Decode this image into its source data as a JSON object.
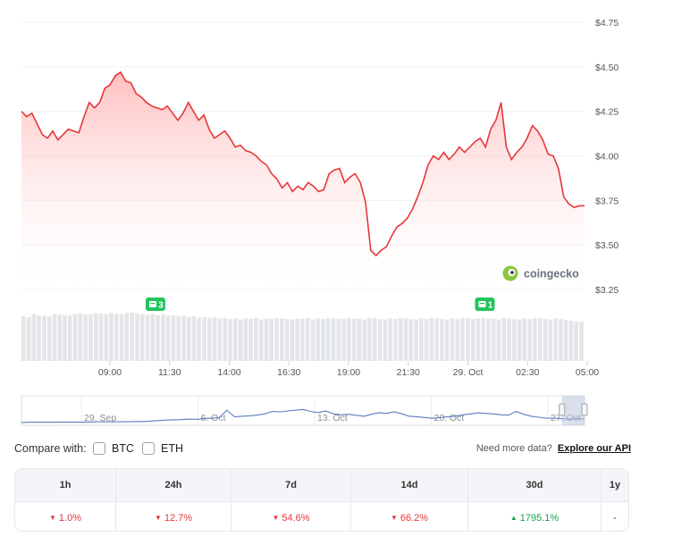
{
  "chart_data": {
    "type": "line",
    "currency_prefix": "$",
    "y_ticks": [
      "$4.75",
      "$4.50",
      "$4.25",
      "$4.00",
      "$3.75",
      "$3.50",
      "$3.25"
    ],
    "ylim": [
      3.25,
      4.75
    ],
    "x_ticks": [
      "09:00",
      "11:30",
      "14:00",
      "16:30",
      "19:00",
      "21:30",
      "29. Oct",
      "02:30",
      "05:00"
    ],
    "series": [
      {
        "values": [
          4.25,
          4.22,
          4.24,
          4.18,
          4.12,
          4.1,
          4.14,
          4.09,
          4.12,
          4.15,
          4.14,
          4.13,
          4.22,
          4.3,
          4.27,
          4.3,
          4.38,
          4.4,
          4.45,
          4.47,
          4.42,
          4.41,
          4.35,
          4.33,
          4.3,
          4.28,
          4.27,
          4.26,
          4.28,
          4.24,
          4.2,
          4.24,
          4.3,
          4.25,
          4.2,
          4.23,
          4.15,
          4.1,
          4.12,
          4.14,
          4.1,
          4.05,
          4.06,
          4.03,
          4.02,
          4.0,
          3.97,
          3.95,
          3.9,
          3.87,
          3.82,
          3.85,
          3.8,
          3.83,
          3.81,
          3.85,
          3.83,
          3.8,
          3.81,
          3.9,
          3.92,
          3.93,
          3.85,
          3.88,
          3.9,
          3.85,
          3.74,
          3.47,
          3.44,
          3.47,
          3.49,
          3.55,
          3.6,
          3.62,
          3.65,
          3.7,
          3.77,
          3.85,
          3.95,
          4.0,
          3.98,
          4.02,
          3.98,
          4.01,
          4.05,
          4.02,
          4.05,
          4.08,
          4.1,
          4.05,
          4.15,
          4.2,
          4.3,
          4.05,
          3.98,
          4.02,
          4.05,
          4.1,
          4.17,
          4.14,
          4.09,
          4.01,
          4.0,
          3.93,
          3.77,
          3.73,
          3.71,
          3.72,
          3.72
        ]
      }
    ],
    "event_markers": [
      {
        "label": "3",
        "x_frac": 0.238
      },
      {
        "label": "1",
        "x_frac": 0.823
      }
    ],
    "volume": [
      0.82,
      0.8,
      0.86,
      0.84,
      0.83,
      0.81,
      0.86,
      0.85,
      0.84,
      0.83,
      0.86,
      0.87,
      0.85,
      0.86,
      0.88,
      0.87,
      0.86,
      0.88,
      0.87,
      0.86,
      0.88,
      0.89,
      0.87,
      0.86,
      0.85,
      0.86,
      0.84,
      0.85,
      0.83,
      0.84,
      0.82,
      0.83,
      0.81,
      0.82,
      0.8,
      0.81,
      0.79,
      0.8,
      0.78,
      0.79,
      0.77,
      0.78,
      0.76,
      0.78,
      0.77,
      0.79,
      0.76,
      0.78,
      0.77,
      0.79,
      0.78,
      0.77,
      0.76,
      0.78,
      0.77,
      0.79,
      0.76,
      0.78,
      0.77,
      0.79,
      0.78,
      0.77,
      0.78,
      0.79,
      0.77,
      0.78,
      0.76,
      0.79,
      0.78,
      0.77,
      0.76,
      0.78,
      0.77,
      0.79,
      0.78,
      0.77,
      0.76,
      0.78,
      0.77,
      0.79,
      0.78,
      0.77,
      0.76,
      0.78,
      0.77,
      0.79,
      0.78,
      0.77,
      0.78,
      0.79,
      0.77,
      0.78,
      0.76,
      0.79,
      0.78,
      0.77,
      0.76,
      0.78,
      0.77,
      0.79,
      0.78,
      0.77,
      0.76,
      0.78,
      0.77,
      0.75,
      0.74,
      0.73,
      0.72
    ],
    "navigator": {
      "labels": [
        "29. Sep",
        "6. Oct",
        "13. Oct",
        "20. Oct",
        "27. Oct"
      ],
      "values": [
        0.04,
        0.05,
        0.05,
        0.05,
        0.05,
        0.06,
        0.06,
        0.06,
        0.06,
        0.06,
        0.07,
        0.07,
        0.07,
        0.07,
        0.07,
        0.08,
        0.08,
        0.1,
        0.12,
        0.14,
        0.15,
        0.16,
        0.18,
        0.17,
        0.2,
        0.22,
        0.24,
        0.55,
        0.28,
        0.3,
        0.32,
        0.35,
        0.4,
        0.5,
        0.48,
        0.52,
        0.55,
        0.58,
        0.5,
        0.45,
        0.52,
        0.4,
        0.36,
        0.38,
        0.34,
        0.3,
        0.38,
        0.45,
        0.42,
        0.48,
        0.4,
        0.3,
        0.28,
        0.25,
        0.22,
        0.24,
        0.28,
        0.3,
        0.36,
        0.4,
        0.44,
        0.42,
        0.4,
        0.36,
        0.35,
        0.5,
        0.38,
        0.3,
        0.26,
        0.22,
        0.22,
        0.2,
        0.18,
        0.2,
        0.18
      ],
      "selection_frac": [
        0.96,
        1.0
      ]
    }
  },
  "watermark": "coingecko",
  "compare": {
    "label": "Compare with:",
    "options": [
      "BTC",
      "ETH"
    ]
  },
  "more_data": {
    "text": "Need more data?",
    "link": "Explore our API"
  },
  "performance": {
    "headers": [
      "1h",
      "24h",
      "7d",
      "14d",
      "30d",
      "1y"
    ],
    "values": [
      {
        "text": "1.0%",
        "dir": "down"
      },
      {
        "text": "12.7%",
        "dir": "down"
      },
      {
        "text": "54.6%",
        "dir": "down"
      },
      {
        "text": "66.2%",
        "dir": "down"
      },
      {
        "text": "1795.1%",
        "dir": "up"
      },
      {
        "text": "-",
        "dir": "none"
      }
    ]
  },
  "colors": {
    "line": "#e5383b",
    "fill_top": "#ffb3b3",
    "volume": "#e3e5e8",
    "navigator_line": "#5a7dbd",
    "marker": "#22c55e",
    "grid": "#eef0f3"
  }
}
